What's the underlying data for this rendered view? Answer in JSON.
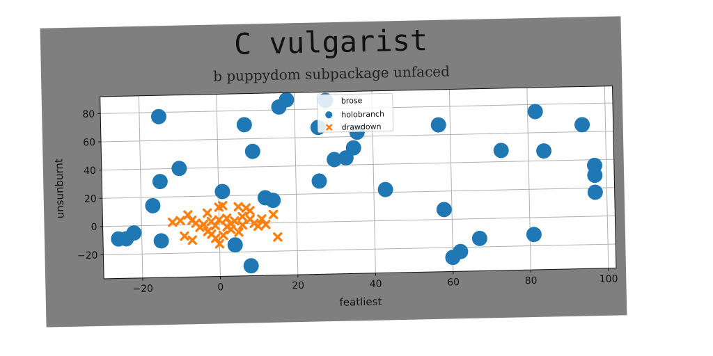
{
  "chart_data": {
    "type": "scatter",
    "title": "C vulgarist",
    "subtitle": "b puppydom subpackage unfaced",
    "xlabel": "featliest",
    "ylabel": "unsunburnt",
    "xlim": [
      -30,
      102
    ],
    "ylim": [
      -37,
      92
    ],
    "xticks": [
      -20,
      0,
      20,
      40,
      60,
      80,
      100
    ],
    "yticks": [
      -20,
      0,
      20,
      40,
      60,
      80
    ],
    "grid": true,
    "legend": {
      "title": "brose",
      "placement": "top-center"
    },
    "colors": {
      "holobranch": "#1f77b4",
      "drawdown": "#ff7f0e",
      "figure_bg": "#7f7f7f"
    },
    "series": [
      {
        "name": "holobranch",
        "marker": "circle",
        "points": [
          [
            -15,
            77
          ],
          [
            7,
            70
          ],
          [
            16,
            82
          ],
          [
            18,
            87
          ],
          [
            26,
            67
          ],
          [
            28,
            86
          ],
          [
            36,
            63
          ],
          [
            57,
            67
          ],
          [
            82,
            75
          ],
          [
            94,
            65
          ],
          [
            -10,
            40
          ],
          [
            -15,
            31
          ],
          [
            9,
            51
          ],
          [
            35,
            52
          ],
          [
            33,
            45
          ],
          [
            30,
            44
          ],
          [
            73,
            48
          ],
          [
            84,
            47
          ],
          [
            97,
            36
          ],
          [
            97,
            29
          ],
          [
            97,
            17
          ],
          [
            1,
            23
          ],
          [
            26,
            29
          ],
          [
            43,
            22
          ],
          [
            12,
            18
          ],
          [
            14,
            16
          ],
          [
            -17,
            14
          ],
          [
            58,
            7
          ],
          [
            -24,
            -9
          ],
          [
            -22,
            -5
          ],
          [
            -15,
            -11
          ],
          [
            4,
            -15
          ],
          [
            8,
            -30
          ],
          [
            60,
            -27
          ],
          [
            62,
            -23
          ],
          [
            67,
            -14
          ],
          [
            81,
            -12
          ],
          [
            -26,
            -9
          ]
        ]
      },
      {
        "name": "drawdown",
        "marker": "x",
        "points": [
          [
            -12,
            2
          ],
          [
            -10,
            3
          ],
          [
            -8,
            7
          ],
          [
            -7,
            3
          ],
          [
            -6,
            1
          ],
          [
            -4,
            0
          ],
          [
            -3,
            8
          ],
          [
            -2,
            2
          ],
          [
            -1,
            -1
          ],
          [
            0,
            12
          ],
          [
            1,
            13
          ],
          [
            2,
            4
          ],
          [
            2,
            -2
          ],
          [
            3,
            0
          ],
          [
            4,
            2
          ],
          [
            5,
            12
          ],
          [
            6,
            5
          ],
          [
            7,
            11
          ],
          [
            8,
            9
          ],
          [
            8,
            3
          ],
          [
            9,
            0
          ],
          [
            10,
            -2
          ],
          [
            11,
            3
          ],
          [
            12,
            -1
          ],
          [
            14,
            6
          ],
          [
            15,
            -10
          ],
          [
            -9,
            -8
          ],
          [
            -7,
            -11
          ],
          [
            -3,
            -5
          ],
          [
            -1,
            -10
          ],
          [
            0,
            -14
          ],
          [
            1,
            -8
          ],
          [
            3,
            -4
          ],
          [
            5,
            -6
          ],
          [
            -5,
            -2
          ],
          [
            -2,
            -7
          ],
          [
            0,
            3
          ],
          [
            6,
            -1
          ]
        ]
      }
    ]
  }
}
